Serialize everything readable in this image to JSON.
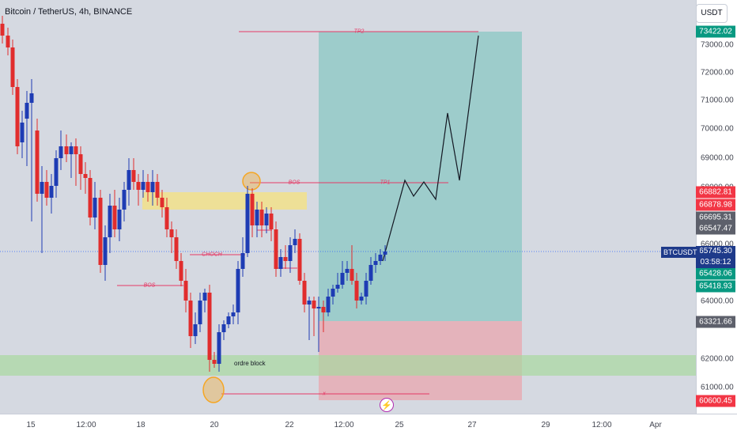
{
  "header": {
    "symbol_title": "Bitcoin / TetherUS, 4h, BINANCE",
    "currency_button": "USDT"
  },
  "price_scale": {
    "ticks": [
      "73000.00",
      "72000.00",
      "71000.00",
      "70000.00",
      "69000.00",
      "68000.00",
      "66000.00",
      "64000.00",
      "62000.00",
      "61000.00"
    ],
    "tags": [
      {
        "label": "73422.02",
        "price": 73422.02,
        "color": "#089981"
      },
      {
        "label": "66882.81",
        "price": 66882.81,
        "color": "#f23645"
      },
      {
        "label": "66878.98",
        "price": 66878.98,
        "color": "#f23645"
      },
      {
        "label": "66695.31",
        "price": 66695.31,
        "color": "#5d606b"
      },
      {
        "label": "66547.47",
        "price": 66547.47,
        "color": "#5d606b"
      },
      {
        "label": "65428.06",
        "price": 65428.06,
        "color": "#089981"
      },
      {
        "label": "65418.93",
        "price": 65418.93,
        "color": "#089981"
      },
      {
        "label": "63321.66",
        "price": 63321.66,
        "color": "#5d606b"
      },
      {
        "label": "60600.45",
        "price": 60600.45,
        "color": "#f23645"
      }
    ],
    "current_price": "65745.30",
    "countdown": "03:58:12",
    "symbol_badge": "BTCUSDT"
  },
  "time_scale": {
    "ticks": [
      "15",
      "12:00",
      "18",
      "20",
      "22",
      "12:00",
      "25",
      "27",
      "29",
      "12:00",
      "Apr"
    ]
  },
  "annotations": {
    "tp2": "TP2",
    "tp1": "TP1",
    "bos_top": "BOS",
    "choch": "CHOCH",
    "bos_low": "BOS",
    "stop": "x",
    "order_block": "ordre block"
  },
  "colors": {
    "bull": "#1e3cb4",
    "bear": "#e12d2d",
    "tp_zone": "#7fc4bf",
    "sl_zone": "#e8a6ae",
    "ob_zone": "#a8d8a0",
    "supply_zone": "#f2e08a",
    "anno_line": "#e53a66",
    "circle": "#f5a623"
  },
  "icons": {
    "lightning": "lightning-icon"
  }
}
